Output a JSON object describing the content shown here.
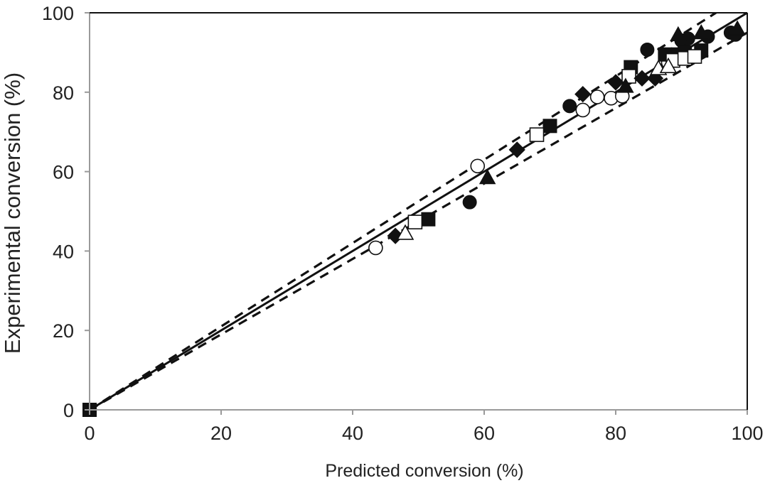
{
  "chart_data": {
    "type": "scatter",
    "title": "",
    "xlabel": "Predicted conversion (%)",
    "ylabel": "Experimental conversion (%)",
    "xlim": [
      0,
      100
    ],
    "ylim": [
      0,
      100
    ],
    "xticks": [
      "0",
      "20",
      "40",
      "60",
      "80",
      "100"
    ],
    "yticks": [
      "0",
      "20",
      "40",
      "60",
      "80",
      "100"
    ],
    "grid": false,
    "legend": "none",
    "reference_lines": [
      {
        "style": "solid",
        "x": [
          0,
          100
        ],
        "y": [
          0,
          100
        ]
      },
      {
        "style": "dashed",
        "x": [
          0,
          100
        ],
        "y": [
          0,
          105
        ]
      },
      {
        "style": "dashed",
        "x": [
          0,
          100
        ],
        "y": [
          0,
          95
        ]
      }
    ],
    "series": [
      {
        "marker": "filled-circle",
        "color": "#111111",
        "x": [
          57.8,
          73,
          84.8,
          90,
          91,
          94,
          97.5,
          98.2
        ],
        "y": [
          52.3,
          76.5,
          90.7,
          93,
          93.5,
          94,
          95,
          94.5
        ]
      },
      {
        "marker": "open-circle",
        "color": "#111111",
        "x": [
          43.5,
          59,
          75,
          77.2,
          79.3,
          81,
          88,
          89
        ],
        "y": [
          40.8,
          61.4,
          75.5,
          78.8,
          78.5,
          79,
          87.5,
          88
        ]
      },
      {
        "marker": "filled-square",
        "color": "#111111",
        "x": [
          0,
          51.5,
          70,
          82.3,
          87.5,
          89.5,
          90.5,
          93
        ],
        "y": [
          0,
          48,
          71.5,
          86.3,
          89.5,
          89.5,
          90,
          90.5
        ]
      },
      {
        "marker": "open-square",
        "color": "#111111",
        "x": [
          49.5,
          68,
          82,
          88.7,
          90.5,
          92
        ],
        "y": [
          47.3,
          69.3,
          84,
          88,
          88.5,
          89
        ]
      },
      {
        "marker": "filled-diamond",
        "color": "#111111",
        "x": [
          46.5,
          65,
          75,
          80,
          84,
          86
        ],
        "y": [
          43.8,
          65.5,
          79.5,
          82.5,
          83.5,
          83.5
        ]
      },
      {
        "marker": "filled-triangle",
        "color": "#111111",
        "x": [
          60.5,
          81.5,
          89.5,
          93,
          98.5
        ],
        "y": [
          58.5,
          81.5,
          94.5,
          95,
          96
        ]
      },
      {
        "marker": "open-triangle",
        "color": "#111111",
        "x": [
          48,
          86.5,
          88
        ],
        "y": [
          44.5,
          86,
          86.5
        ]
      }
    ]
  }
}
